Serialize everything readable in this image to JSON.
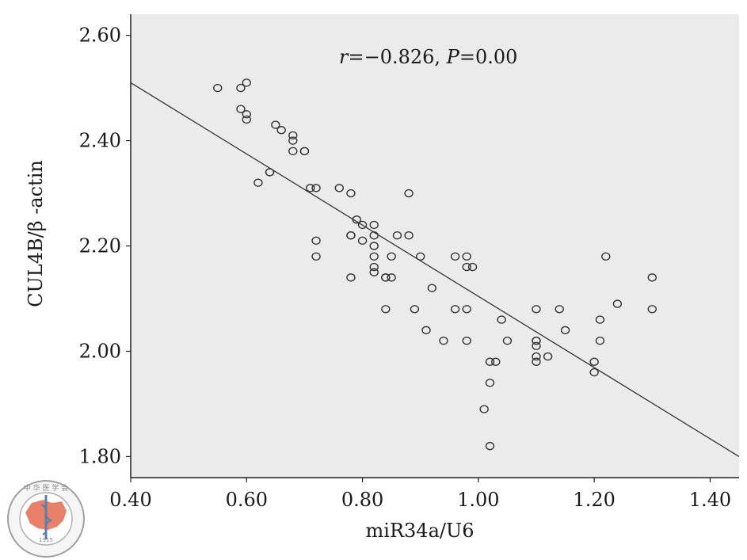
{
  "chart_data": {
    "type": "scatter",
    "title": "",
    "xlabel": "miR34a/U6",
    "ylabel": "CUL4B/β -actin",
    "xlim": [
      0.4,
      1.45
    ],
    "ylim": [
      1.76,
      2.64
    ],
    "x_ticks": [
      "0.40",
      "0.60",
      "0.80",
      "1.00",
      "1.20",
      "1.40"
    ],
    "y_ticks": [
      "1.80",
      "2.00",
      "2.20",
      "2.40",
      "2.60"
    ],
    "annotation": {
      "r_symbol": "r",
      "r_value": "=−0.826, ",
      "p_symbol": "P",
      "p_value": "=0.00"
    },
    "grid": false,
    "legend": "none",
    "plot_background": "#ebebeb",
    "marker_color": "#333333",
    "fit_line": {
      "x": [
        0.4,
        1.45
      ],
      "y": [
        2.51,
        1.8
      ]
    },
    "points": [
      {
        "x": 0.55,
        "y": 2.5
      },
      {
        "x": 0.59,
        "y": 2.5
      },
      {
        "x": 0.6,
        "y": 2.51
      },
      {
        "x": 0.59,
        "y": 2.46
      },
      {
        "x": 0.6,
        "y": 2.45
      },
      {
        "x": 0.6,
        "y": 2.44
      },
      {
        "x": 0.65,
        "y": 2.43
      },
      {
        "x": 0.66,
        "y": 2.42
      },
      {
        "x": 0.68,
        "y": 2.41
      },
      {
        "x": 0.68,
        "y": 2.4
      },
      {
        "x": 0.68,
        "y": 2.38
      },
      {
        "x": 0.7,
        "y": 2.38
      },
      {
        "x": 0.7,
        "y": 2.38
      },
      {
        "x": 0.64,
        "y": 2.34
      },
      {
        "x": 0.64,
        "y": 2.34
      },
      {
        "x": 0.62,
        "y": 2.32
      },
      {
        "x": 0.71,
        "y": 2.31
      },
      {
        "x": 0.72,
        "y": 2.31
      },
      {
        "x": 0.76,
        "y": 2.31
      },
      {
        "x": 0.78,
        "y": 2.3
      },
      {
        "x": 0.88,
        "y": 2.3
      },
      {
        "x": 0.79,
        "y": 2.25
      },
      {
        "x": 0.8,
        "y": 2.24
      },
      {
        "x": 0.82,
        "y": 2.24
      },
      {
        "x": 0.78,
        "y": 2.22
      },
      {
        "x": 0.78,
        "y": 2.22
      },
      {
        "x": 0.82,
        "y": 2.22
      },
      {
        "x": 0.86,
        "y": 2.22
      },
      {
        "x": 0.88,
        "y": 2.22
      },
      {
        "x": 0.72,
        "y": 2.21
      },
      {
        "x": 0.8,
        "y": 2.21
      },
      {
        "x": 0.82,
        "y": 2.2
      },
      {
        "x": 0.72,
        "y": 2.18
      },
      {
        "x": 0.82,
        "y": 2.18
      },
      {
        "x": 0.85,
        "y": 2.18
      },
      {
        "x": 0.9,
        "y": 2.18
      },
      {
        "x": 0.82,
        "y": 2.16
      },
      {
        "x": 0.82,
        "y": 2.15
      },
      {
        "x": 0.78,
        "y": 2.14
      },
      {
        "x": 0.84,
        "y": 2.14
      },
      {
        "x": 0.84,
        "y": 2.14
      },
      {
        "x": 0.85,
        "y": 2.14
      },
      {
        "x": 0.92,
        "y": 2.12
      },
      {
        "x": 0.96,
        "y": 2.18
      },
      {
        "x": 0.98,
        "y": 2.18
      },
      {
        "x": 0.98,
        "y": 2.16
      },
      {
        "x": 0.99,
        "y": 2.16
      },
      {
        "x": 0.84,
        "y": 2.08
      },
      {
        "x": 0.89,
        "y": 2.08
      },
      {
        "x": 0.96,
        "y": 2.08
      },
      {
        "x": 0.98,
        "y": 2.08
      },
      {
        "x": 0.91,
        "y": 2.04
      },
      {
        "x": 0.94,
        "y": 2.02
      },
      {
        "x": 0.98,
        "y": 2.02
      },
      {
        "x": 1.04,
        "y": 2.06
      },
      {
        "x": 1.05,
        "y": 2.02
      },
      {
        "x": 1.1,
        "y": 2.08
      },
      {
        "x": 1.1,
        "y": 2.02
      },
      {
        "x": 1.1,
        "y": 2.02
      },
      {
        "x": 1.1,
        "y": 2.01
      },
      {
        "x": 1.1,
        "y": 1.99
      },
      {
        "x": 1.1,
        "y": 1.98
      },
      {
        "x": 1.12,
        "y": 1.99
      },
      {
        "x": 1.14,
        "y": 2.08
      },
      {
        "x": 1.15,
        "y": 2.04
      },
      {
        "x": 1.02,
        "y": 1.98
      },
      {
        "x": 1.03,
        "y": 1.98
      },
      {
        "x": 1.02,
        "y": 1.94
      },
      {
        "x": 1.01,
        "y": 1.89
      },
      {
        "x": 1.02,
        "y": 1.82
      },
      {
        "x": 1.2,
        "y": 1.98
      },
      {
        "x": 1.2,
        "y": 1.96
      },
      {
        "x": 1.21,
        "y": 2.06
      },
      {
        "x": 1.21,
        "y": 2.02
      },
      {
        "x": 1.22,
        "y": 2.18
      },
      {
        "x": 1.24,
        "y": 2.09
      },
      {
        "x": 1.3,
        "y": 2.14
      },
      {
        "x": 1.3,
        "y": 2.08
      }
    ]
  },
  "logo": {
    "name": "Chinese Medical Association seal",
    "top_text": "中 华 医 学 会",
    "year": "1915",
    "ring_text": "CHINESE MEDICAL ASSOCIATION"
  }
}
